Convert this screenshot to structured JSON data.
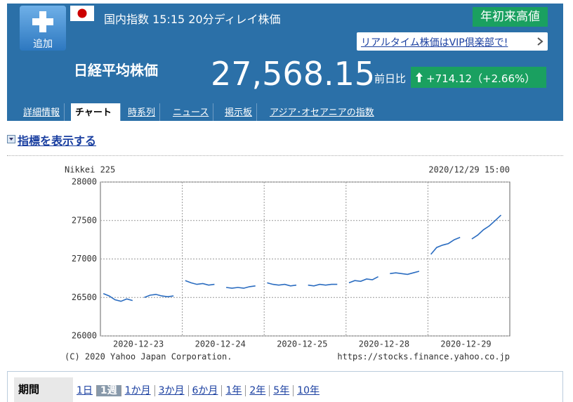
{
  "header": {
    "add_button": "追加",
    "market_info": "国内指数 15:15 20分ディレイ株価",
    "badge": "年初来高値",
    "vip_link": "リアルタイム株価はVIP倶楽部で!",
    "name": "日経平均株価",
    "price": "27,568.15",
    "change_label": "前日比",
    "change": "+714.12（+2.66%）"
  },
  "tabs": [
    "詳細情報",
    "チャート",
    "時系列",
    "ニュース",
    "掲示板",
    "アジア･オセアニアの指数"
  ],
  "active_tab": 1,
  "indicator_toggle": "指標を表示する",
  "chart_data": {
    "type": "line",
    "title": "Nikkei 225",
    "subtitle": "2020/12/29 15:00",
    "credit": "(C) 2020 Yahoo Japan Corporation.",
    "source": "https://stocks.finance.yahoo.co.jp",
    "categories": [
      null,
      null,
      null,
      null,
      null,
      null,
      "2020-12-23",
      null,
      null,
      null,
      null,
      null,
      null,
      null,
      null,
      null,
      null,
      null,
      null,
      null,
      "2020-12-24",
      null,
      null,
      null,
      null,
      null,
      null,
      null,
      null,
      null,
      null,
      null,
      null,
      null,
      "2020-12-25",
      null,
      null,
      null,
      null,
      null,
      null,
      null,
      null,
      null,
      null,
      null,
      null,
      null,
      "2020-12-28",
      null,
      null,
      null,
      null,
      null,
      null,
      null,
      null,
      null,
      null,
      null,
      null,
      null,
      "2020-12-29",
      null,
      null,
      null,
      null,
      null,
      null,
      null
    ],
    "values": [
      26550,
      26520,
      26470,
      26450,
      26480,
      26460,
      null,
      26500,
      26530,
      26540,
      26520,
      26510,
      26520,
      null,
      26720,
      26690,
      26670,
      26680,
      26660,
      26670,
      null,
      26630,
      26620,
      26630,
      26620,
      26640,
      26650,
      null,
      26690,
      26670,
      26660,
      26670,
      26650,
      26660,
      null,
      26660,
      26650,
      26670,
      26660,
      26670,
      26670,
      null,
      26690,
      26720,
      26710,
      26740,
      26730,
      26770,
      null,
      26810,
      26820,
      26810,
      26800,
      26820,
      26840,
      null,
      27060,
      27150,
      27180,
      27200,
      27250,
      27280,
      null,
      27260,
      27310,
      27380,
      27430,
      27500,
      27570,
      null
    ],
    "color": "#2a6cc0",
    "ylim": [
      26000,
      28000
    ],
    "yticks": [
      26000,
      26500,
      27000,
      27500,
      28000
    ],
    "grid": true
  },
  "period": {
    "label": "期間",
    "options": [
      "1日",
      "1週",
      "1か月",
      "3か月",
      "6か月",
      "1年",
      "2年",
      "5年",
      "10年"
    ],
    "selected": 1
  }
}
